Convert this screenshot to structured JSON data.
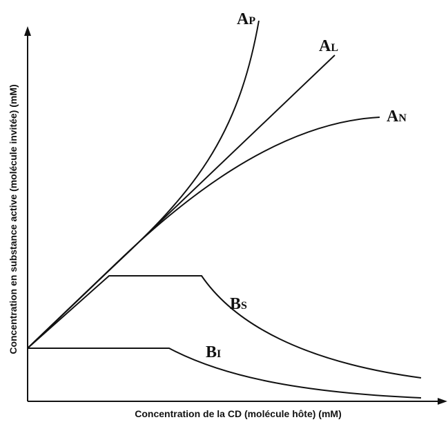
{
  "x_axis_label": "Concentration de la CD (molécule hôte)  (mM)",
  "y_axis_label": "Concentration en substance active (molécule invitée) (mM)",
  "curves": [
    {
      "letter": "A",
      "subscript": "P"
    },
    {
      "letter": "A",
      "subscript": "L"
    },
    {
      "letter": "A",
      "subscript": "N"
    },
    {
      "letter": "B",
      "subscript": "S"
    },
    {
      "letter": "B",
      "subscript": "I"
    }
  ]
}
